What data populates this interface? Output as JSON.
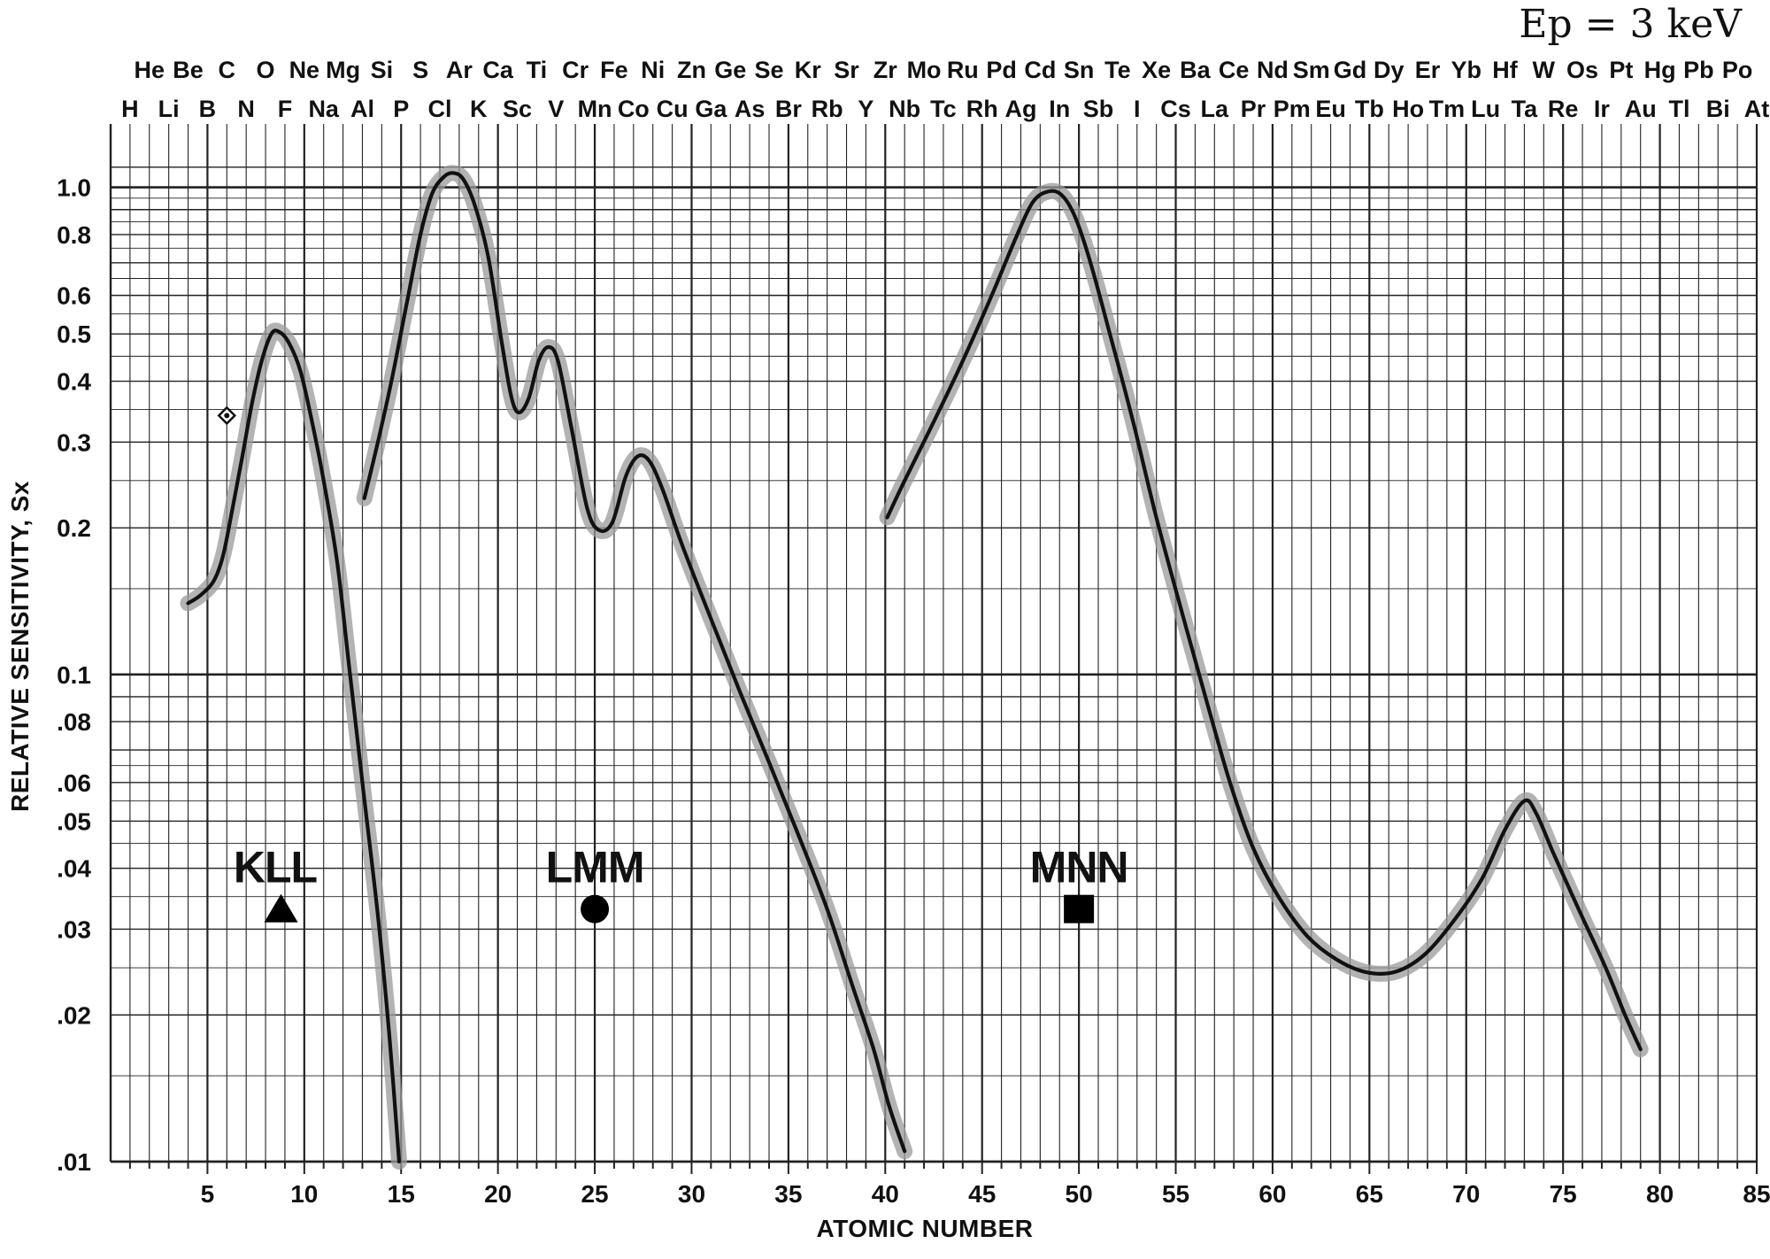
{
  "chart_data": {
    "type": "line",
    "title": "",
    "energy_label": "Ep = 3 keV",
    "xlabel": "ATOMIC NUMBER",
    "ylabel": "RELATIVE SENSITIVITY, Sx",
    "xlim": [
      0,
      85
    ],
    "ylim": [
      0.01,
      1.2
    ],
    "y_scale": "log",
    "grid": true,
    "x_ticks": [
      5,
      10,
      15,
      20,
      25,
      30,
      35,
      40,
      45,
      50,
      55,
      60,
      65,
      70,
      75,
      80,
      85
    ],
    "y_ticks": [
      {
        "value": 1.0,
        "label": "1.0"
      },
      {
        "value": 0.8,
        "label": "0.8"
      },
      {
        "value": 0.6,
        "label": "0.6"
      },
      {
        "value": 0.5,
        "label": "0.5"
      },
      {
        "value": 0.4,
        "label": "0.4"
      },
      {
        "value": 0.3,
        "label": "0.3"
      },
      {
        "value": 0.2,
        "label": "0.2"
      },
      {
        "value": 0.1,
        "label": "0.1"
      },
      {
        "value": 0.08,
        "label": ".08"
      },
      {
        "value": 0.06,
        "label": ".06"
      },
      {
        "value": 0.05,
        "label": ".05"
      },
      {
        "value": 0.04,
        "label": ".04"
      },
      {
        "value": 0.03,
        "label": ".03"
      },
      {
        "value": 0.02,
        "label": ".02"
      },
      {
        "value": 0.01,
        "label": ".01"
      }
    ],
    "elements_top_row": [
      {
        "z": 2,
        "symbol": "He"
      },
      {
        "z": 4,
        "symbol": "Be"
      },
      {
        "z": 6,
        "symbol": "C"
      },
      {
        "z": 8,
        "symbol": "O"
      },
      {
        "z": 10,
        "symbol": "Ne"
      },
      {
        "z": 12,
        "symbol": "Mg"
      },
      {
        "z": 14,
        "symbol": "Si"
      },
      {
        "z": 16,
        "symbol": "S"
      },
      {
        "z": 18,
        "symbol": "Ar"
      },
      {
        "z": 20,
        "symbol": "Ca"
      },
      {
        "z": 22,
        "symbol": "Ti"
      },
      {
        "z": 24,
        "symbol": "Cr"
      },
      {
        "z": 26,
        "symbol": "Fe"
      },
      {
        "z": 28,
        "symbol": "Ni"
      },
      {
        "z": 30,
        "symbol": "Zn"
      },
      {
        "z": 32,
        "symbol": "Ge"
      },
      {
        "z": 34,
        "symbol": "Se"
      },
      {
        "z": 36,
        "symbol": "Kr"
      },
      {
        "z": 38,
        "symbol": "Sr"
      },
      {
        "z": 40,
        "symbol": "Zr"
      },
      {
        "z": 42,
        "symbol": "Mo"
      },
      {
        "z": 44,
        "symbol": "Ru"
      },
      {
        "z": 46,
        "symbol": "Pd"
      },
      {
        "z": 48,
        "symbol": "Cd"
      },
      {
        "z": 50,
        "symbol": "Sn"
      },
      {
        "z": 52,
        "symbol": "Te"
      },
      {
        "z": 54,
        "symbol": "Xe"
      },
      {
        "z": 56,
        "symbol": "Ba"
      },
      {
        "z": 58,
        "symbol": "Ce"
      },
      {
        "z": 60,
        "symbol": "Nd"
      },
      {
        "z": 62,
        "symbol": "Sm"
      },
      {
        "z": 64,
        "symbol": "Gd"
      },
      {
        "z": 66,
        "symbol": "Dy"
      },
      {
        "z": 68,
        "symbol": "Er"
      },
      {
        "z": 70,
        "symbol": "Yb"
      },
      {
        "z": 72,
        "symbol": "Hf"
      },
      {
        "z": 74,
        "symbol": "W"
      },
      {
        "z": 76,
        "symbol": "Os"
      },
      {
        "z": 78,
        "symbol": "Pt"
      },
      {
        "z": 80,
        "symbol": "Hg"
      },
      {
        "z": 82,
        "symbol": "Pb"
      },
      {
        "z": 84,
        "symbol": "Po"
      }
    ],
    "elements_bottom_row": [
      {
        "z": 1,
        "symbol": "H"
      },
      {
        "z": 3,
        "symbol": "Li"
      },
      {
        "z": 5,
        "symbol": "B"
      },
      {
        "z": 7,
        "symbol": "N"
      },
      {
        "z": 9,
        "symbol": "F"
      },
      {
        "z": 11,
        "symbol": "Na"
      },
      {
        "z": 13,
        "symbol": "Al"
      },
      {
        "z": 15,
        "symbol": "P"
      },
      {
        "z": 17,
        "symbol": "Cl"
      },
      {
        "z": 19,
        "symbol": "K"
      },
      {
        "z": 21,
        "symbol": "Sc"
      },
      {
        "z": 23,
        "symbol": "V"
      },
      {
        "z": 25,
        "symbol": "Mn"
      },
      {
        "z": 27,
        "symbol": "Co"
      },
      {
        "z": 29,
        "symbol": "Cu"
      },
      {
        "z": 31,
        "symbol": "Ga"
      },
      {
        "z": 33,
        "symbol": "As"
      },
      {
        "z": 35,
        "symbol": "Br"
      },
      {
        "z": 37,
        "symbol": "Rb"
      },
      {
        "z": 39,
        "symbol": "Y"
      },
      {
        "z": 41,
        "symbol": "Nb"
      },
      {
        "z": 43,
        "symbol": "Tc"
      },
      {
        "z": 45,
        "symbol": "Rh"
      },
      {
        "z": 47,
        "symbol": "Ag"
      },
      {
        "z": 49,
        "symbol": "In"
      },
      {
        "z": 51,
        "symbol": "Sb"
      },
      {
        "z": 53,
        "symbol": "I"
      },
      {
        "z": 55,
        "symbol": "Cs"
      },
      {
        "z": 57,
        "symbol": "La"
      },
      {
        "z": 59,
        "symbol": "Pr"
      },
      {
        "z": 61,
        "symbol": "Pm"
      },
      {
        "z": 63,
        "symbol": "Eu"
      },
      {
        "z": 65,
        "symbol": "Tb"
      },
      {
        "z": 67,
        "symbol": "Ho"
      },
      {
        "z": 69,
        "symbol": "Tm"
      },
      {
        "z": 71,
        "symbol": "Lu"
      },
      {
        "z": 73,
        "symbol": "Ta"
      },
      {
        "z": 75,
        "symbol": "Re"
      },
      {
        "z": 77,
        "symbol": "Ir"
      },
      {
        "z": 79,
        "symbol": "Au"
      },
      {
        "z": 81,
        "symbol": "Tl"
      },
      {
        "z": 83,
        "symbol": "Bi"
      },
      {
        "z": 85,
        "symbol": "At"
      }
    ],
    "series": [
      {
        "name": "KLL",
        "marker": "triangle",
        "label_position": {
          "x": 8.5,
          "y": 0.04
        },
        "marker_position": {
          "x": 8.8,
          "y": 0.033
        },
        "points": [
          [
            4,
            0.14
          ],
          [
            4.6,
            0.145
          ],
          [
            5.3,
            0.155
          ],
          [
            5.8,
            0.175
          ],
          [
            6.3,
            0.22
          ],
          [
            6.8,
            0.28
          ],
          [
            7.3,
            0.36
          ],
          [
            7.8,
            0.44
          ],
          [
            8.3,
            0.5
          ],
          [
            8.7,
            0.505
          ],
          [
            9.2,
            0.48
          ],
          [
            9.8,
            0.42
          ],
          [
            10.4,
            0.33
          ],
          [
            11,
            0.25
          ],
          [
            11.7,
            0.17
          ],
          [
            12.3,
            0.105
          ],
          [
            13,
            0.06
          ],
          [
            13.8,
            0.032
          ],
          [
            14.4,
            0.018
          ],
          [
            14.9,
            0.01
          ]
        ]
      },
      {
        "name": "LMM",
        "marker": "circle",
        "label_position": {
          "x": 25,
          "y": 0.04
        },
        "marker_position": {
          "x": 25,
          "y": 0.033
        },
        "points": [
          [
            13.1,
            0.23
          ],
          [
            13.8,
            0.3
          ],
          [
            14.5,
            0.4
          ],
          [
            15.3,
            0.58
          ],
          [
            16,
            0.8
          ],
          [
            16.6,
            0.97
          ],
          [
            17.2,
            1.05
          ],
          [
            17.7,
            1.07
          ],
          [
            18.2,
            1.04
          ],
          [
            18.8,
            0.92
          ],
          [
            19.5,
            0.72
          ],
          [
            20.2,
            0.48
          ],
          [
            20.7,
            0.37
          ],
          [
            21.1,
            0.345
          ],
          [
            21.6,
            0.37
          ],
          [
            22.1,
            0.44
          ],
          [
            22.6,
            0.47
          ],
          [
            23.1,
            0.44
          ],
          [
            23.8,
            0.32
          ],
          [
            24.6,
            0.22
          ],
          [
            25.2,
            0.198
          ],
          [
            25.9,
            0.205
          ],
          [
            26.6,
            0.255
          ],
          [
            27.2,
            0.28
          ],
          [
            27.8,
            0.275
          ],
          [
            28.5,
            0.24
          ],
          [
            29.5,
            0.185
          ],
          [
            31,
            0.13
          ],
          [
            32.5,
            0.092
          ],
          [
            34,
            0.066
          ],
          [
            35.5,
            0.047
          ],
          [
            37,
            0.033
          ],
          [
            38.3,
            0.023
          ],
          [
            39.4,
            0.017
          ],
          [
            40.2,
            0.013
          ],
          [
            41,
            0.0105
          ]
        ]
      },
      {
        "name": "MNN",
        "marker": "square",
        "label_position": {
          "x": 50,
          "y": 0.04
        },
        "marker_position": {
          "x": 50,
          "y": 0.033
        },
        "points": [
          [
            40.1,
            0.21
          ],
          [
            41,
            0.25
          ],
          [
            42.5,
            0.33
          ],
          [
            44,
            0.44
          ],
          [
            45.5,
            0.6
          ],
          [
            46.7,
            0.78
          ],
          [
            47.6,
            0.93
          ],
          [
            48.4,
            0.98
          ],
          [
            49.1,
            0.965
          ],
          [
            49.8,
            0.87
          ],
          [
            50.6,
            0.7
          ],
          [
            51.6,
            0.5
          ],
          [
            52.8,
            0.33
          ],
          [
            54,
            0.21
          ],
          [
            55.3,
            0.135
          ],
          [
            56.6,
            0.088
          ],
          [
            57.8,
            0.06
          ],
          [
            59,
            0.044
          ],
          [
            60.3,
            0.035
          ],
          [
            61.8,
            0.029
          ],
          [
            63.3,
            0.026
          ],
          [
            64.8,
            0.0245
          ],
          [
            66.3,
            0.0245
          ],
          [
            67.8,
            0.0265
          ],
          [
            69.3,
            0.031
          ],
          [
            70.8,
            0.038
          ],
          [
            72,
            0.048
          ],
          [
            73,
            0.055
          ],
          [
            73.6,
            0.052
          ],
          [
            74.5,
            0.043
          ],
          [
            75.8,
            0.033
          ],
          [
            77.2,
            0.025
          ],
          [
            78.2,
            0.02
          ],
          [
            79,
            0.017
          ]
        ]
      }
    ],
    "annotations": [
      {
        "type": "diamond-point",
        "x": 6,
        "y": 0.34
      }
    ],
    "colors": {
      "line": "#111111",
      "band": "#9a9a9a",
      "grid": "#222222"
    }
  }
}
